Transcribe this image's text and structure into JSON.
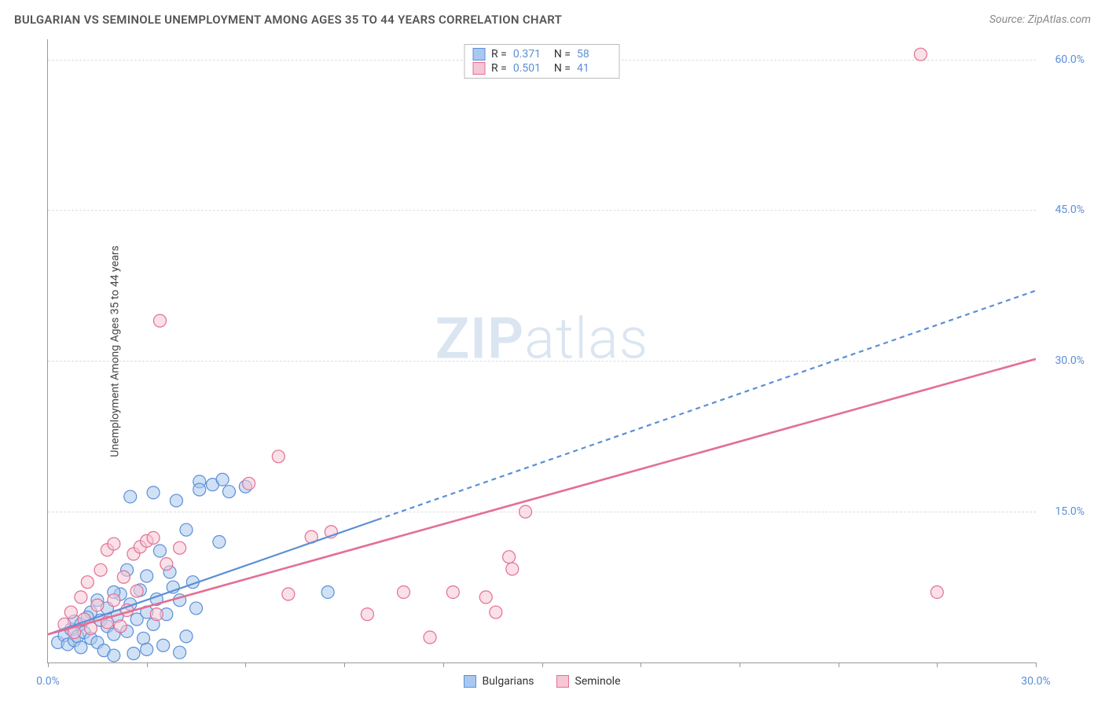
{
  "title": "BULGARIAN VS SEMINOLE UNEMPLOYMENT AMONG AGES 35 TO 44 YEARS CORRELATION CHART",
  "source": "Source: ZipAtlas.com",
  "y_axis_label": "Unemployment Among Ages 35 to 44 years",
  "watermark": {
    "part1": "ZIP",
    "part2": "atlas"
  },
  "chart": {
    "type": "scatter",
    "xlim": [
      0,
      30
    ],
    "ylim": [
      0,
      62
    ],
    "x_ticks": [
      0,
      3,
      6,
      9,
      12,
      15,
      18,
      21,
      24,
      27,
      30
    ],
    "x_tick_labels": {
      "0": "0.0%",
      "30": "30.0%"
    },
    "y_gridlines": [
      15,
      30,
      45,
      60
    ],
    "y_tick_labels": {
      "15": "15.0%",
      "30": "30.0%",
      "45": "45.0%",
      "60": "60.0%"
    },
    "background_color": "#ffffff",
    "grid_color": "#dddddd",
    "axis_color": "#999999",
    "tick_label_color": "#5b8fd6",
    "marker_radius": 8,
    "marker_opacity": 0.55,
    "series": [
      {
        "name": "Bulgarians",
        "fill": "#a9c8ef",
        "stroke": "#5b8fd6",
        "r_value": "0.371",
        "n_value": "58",
        "line": {
          "solid": {
            "x1": 0,
            "y1": 2.8,
            "x2": 10,
            "y2": 14.2
          },
          "dashed": {
            "x1": 10,
            "y1": 14.2,
            "x2": 30,
            "y2": 37.0
          },
          "width": 2.2
        },
        "points": [
          [
            0.3,
            2.0
          ],
          [
            0.5,
            2.7
          ],
          [
            0.6,
            1.8
          ],
          [
            0.7,
            3.3
          ],
          [
            0.8,
            2.2
          ],
          [
            0.8,
            4.1
          ],
          [
            0.9,
            2.6
          ],
          [
            1.0,
            1.5
          ],
          [
            1.0,
            3.8
          ],
          [
            1.1,
            3.0
          ],
          [
            1.3,
            2.4
          ],
          [
            1.3,
            5.0
          ],
          [
            1.5,
            2.0
          ],
          [
            1.5,
            6.2
          ],
          [
            1.6,
            4.2
          ],
          [
            1.7,
            1.2
          ],
          [
            1.8,
            3.6
          ],
          [
            1.8,
            5.4
          ],
          [
            2.0,
            2.8
          ],
          [
            2.0,
            0.7
          ],
          [
            2.1,
            4.6
          ],
          [
            2.2,
            6.8
          ],
          [
            2.4,
            3.1
          ],
          [
            2.4,
            9.2
          ],
          [
            2.5,
            5.8
          ],
          [
            2.5,
            16.5
          ],
          [
            2.6,
            0.9
          ],
          [
            2.7,
            4.3
          ],
          [
            2.8,
            7.2
          ],
          [
            2.9,
            2.4
          ],
          [
            3.0,
            5.0
          ],
          [
            3.0,
            8.6
          ],
          [
            3.2,
            3.8
          ],
          [
            3.2,
            16.9
          ],
          [
            3.3,
            6.3
          ],
          [
            3.4,
            11.1
          ],
          [
            3.5,
            1.7
          ],
          [
            3.6,
            4.8
          ],
          [
            3.7,
            9.0
          ],
          [
            3.8,
            7.5
          ],
          [
            3.9,
            16.1
          ],
          [
            4.0,
            6.2
          ],
          [
            4.2,
            2.6
          ],
          [
            4.2,
            13.2
          ],
          [
            4.4,
            8.0
          ],
          [
            4.5,
            5.4
          ],
          [
            4.6,
            18.0
          ],
          [
            4.6,
            17.2
          ],
          [
            5.0,
            17.7
          ],
          [
            5.3,
            18.2
          ],
          [
            5.5,
            17.0
          ],
          [
            5.2,
            12.0
          ],
          [
            6.0,
            17.5
          ],
          [
            4.0,
            1.0
          ],
          [
            3.0,
            1.3
          ],
          [
            2.0,
            7.0
          ],
          [
            8.5,
            7.0
          ],
          [
            1.2,
            4.5
          ]
        ]
      },
      {
        "name": "Seminole",
        "fill": "#f6c6d4",
        "stroke": "#e36f94",
        "r_value": "0.501",
        "n_value": "41",
        "line": {
          "solid": {
            "x1": 0,
            "y1": 2.8,
            "x2": 30,
            "y2": 30.2
          },
          "width": 2.6
        },
        "points": [
          [
            0.5,
            3.8
          ],
          [
            0.7,
            5.0
          ],
          [
            0.8,
            3.0
          ],
          [
            1.0,
            6.5
          ],
          [
            1.1,
            4.3
          ],
          [
            1.2,
            8.0
          ],
          [
            1.3,
            3.4
          ],
          [
            1.5,
            5.7
          ],
          [
            1.6,
            9.2
          ],
          [
            1.8,
            4.0
          ],
          [
            1.8,
            11.2
          ],
          [
            2.0,
            6.2
          ],
          [
            2.0,
            11.8
          ],
          [
            2.2,
            3.6
          ],
          [
            2.3,
            8.5
          ],
          [
            2.4,
            5.2
          ],
          [
            2.6,
            10.8
          ],
          [
            2.7,
            7.1
          ],
          [
            2.8,
            11.5
          ],
          [
            3.0,
            12.1
          ],
          [
            3.2,
            12.4
          ],
          [
            3.3,
            4.8
          ],
          [
            3.4,
            34.0
          ],
          [
            3.6,
            9.8
          ],
          [
            4.0,
            11.4
          ],
          [
            6.1,
            17.8
          ],
          [
            7.0,
            20.5
          ],
          [
            7.3,
            6.8
          ],
          [
            8.0,
            12.5
          ],
          [
            8.6,
            13.0
          ],
          [
            9.7,
            4.8
          ],
          [
            10.8,
            7.0
          ],
          [
            11.6,
            2.5
          ],
          [
            12.3,
            7.0
          ],
          [
            13.3,
            6.5
          ],
          [
            14.0,
            10.5
          ],
          [
            14.1,
            9.3
          ],
          [
            14.5,
            15.0
          ],
          [
            13.6,
            5.0
          ],
          [
            27.0,
            7.0
          ],
          [
            26.5,
            60.5
          ]
        ]
      }
    ]
  },
  "legend_top": {
    "rows": [
      {
        "swatch_fill": "#a9c8ef",
        "swatch_stroke": "#5b8fd6",
        "r": "0.371",
        "n": "58",
        "r_label": "R =",
        "n_label": "N ="
      },
      {
        "swatch_fill": "#f6c6d4",
        "swatch_stroke": "#e36f94",
        "r": "0.501",
        "n": "41",
        "r_label": "R =",
        "n_label": "N ="
      }
    ]
  },
  "legend_bottom": [
    {
      "swatch_fill": "#a9c8ef",
      "swatch_stroke": "#5b8fd6",
      "label": "Bulgarians"
    },
    {
      "swatch_fill": "#f6c6d4",
      "swatch_stroke": "#e36f94",
      "label": "Seminole"
    }
  ]
}
